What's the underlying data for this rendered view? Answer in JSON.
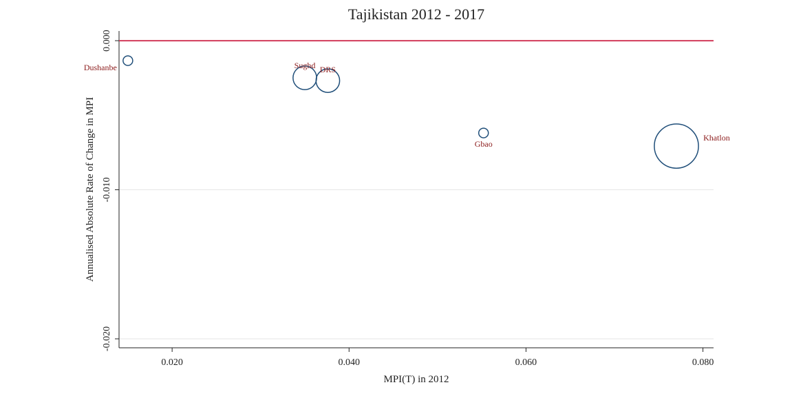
{
  "chart_data": {
    "type": "scatter",
    "title": "Tajikistan 2012 - 2017",
    "x_label": "MPI(T) in 2012",
    "y_label": "Annualised Absolute Rate of Change in MPI",
    "series": [
      {
        "color": "#1f4e79",
        "label_color": "#8b1a1a",
        "labels": [
          "Dushanbe",
          "Sughd",
          "DRS",
          "Gbao",
          "Khatlon"
        ],
        "x": [
          0.015,
          0.035,
          0.0376,
          0.0552,
          0.077
        ],
        "values": [
          -0.00134,
          -0.00249,
          -0.00268,
          -0.00619,
          -0.00707
        ],
        "sizes": [
          1,
          6,
          6,
          1,
          21
        ]
      }
    ],
    "xlim": [
      0.014,
      0.0812
    ],
    "ylim": [
      -0.0206,
      0.00065
    ],
    "xticks": [
      {
        "value": 0.02,
        "label": "0.020"
      },
      {
        "value": 0.04,
        "label": "0.040"
      },
      {
        "value": 0.06,
        "label": "0.060"
      },
      {
        "value": 0.08,
        "label": "0.080"
      }
    ],
    "yticks": [
      {
        "value": 0,
        "label": "0.000"
      },
      {
        "value": -0.01,
        "label": "-0.010"
      },
      {
        "value": -0.02,
        "label": "-0.020"
      }
    ],
    "hline": 0,
    "hline_color": "#d23c5a",
    "grid": true
  }
}
